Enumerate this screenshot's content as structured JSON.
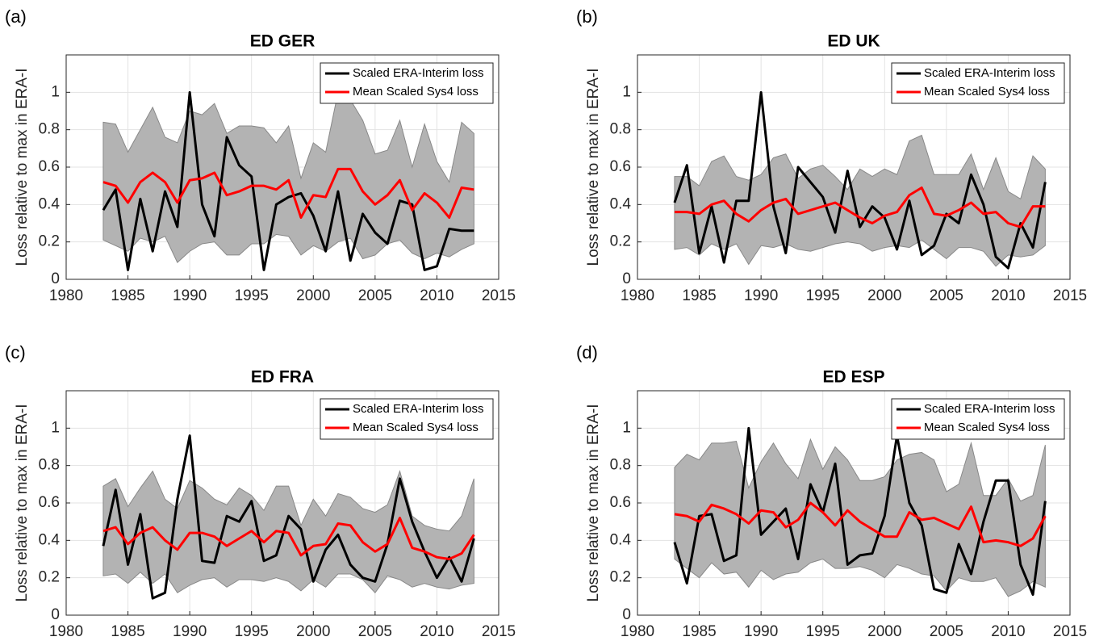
{
  "chart_data": [
    {
      "type": "line",
      "panel_label": "(a)",
      "title": "ED GER",
      "y_label": "Loss relative to max in ERA-I",
      "x": [
        1983,
        1984,
        1985,
        1986,
        1987,
        1988,
        1989,
        1990,
        1991,
        1992,
        1993,
        1994,
        1995,
        1996,
        1997,
        1998,
        1999,
        2000,
        2001,
        2002,
        2003,
        2004,
        2005,
        2006,
        2007,
        2008,
        2009,
        2010,
        2011,
        2012,
        2013
      ],
      "xlim": [
        1980,
        2015
      ],
      "xticks": [
        1980,
        1985,
        1990,
        1995,
        2000,
        2005,
        2010,
        2015
      ],
      "ylim": [
        0,
        1.2
      ],
      "yticks": [
        0,
        0.2,
        0.4,
        0.6,
        0.8,
        1
      ],
      "grid": true,
      "legend": "northeast",
      "band_color": "#b3b3b3",
      "band_upper": [
        0.84,
        0.83,
        0.68,
        0.8,
        0.92,
        0.76,
        0.73,
        0.9,
        0.88,
        0.94,
        0.78,
        0.82,
        0.82,
        0.81,
        0.73,
        0.82,
        0.54,
        0.73,
        0.68,
        1.0,
        0.96,
        0.85,
        0.67,
        0.69,
        0.85,
        0.6,
        0.83,
        0.63,
        0.52,
        0.84,
        0.78
      ],
      "band_lower": [
        0.21,
        0.18,
        0.15,
        0.22,
        0.2,
        0.23,
        0.09,
        0.15,
        0.19,
        0.2,
        0.13,
        0.13,
        0.19,
        0.19,
        0.24,
        0.23,
        0.13,
        0.18,
        0.15,
        0.2,
        0.22,
        0.11,
        0.13,
        0.19,
        0.21,
        0.14,
        0.11,
        0.14,
        0.12,
        0.16,
        0.19
      ],
      "series": [
        {
          "name": "Scaled ERA-Interim loss",
          "color": "#000000",
          "values": [
            0.37,
            0.48,
            0.05,
            0.43,
            0.15,
            0.47,
            0.28,
            1.0,
            0.4,
            0.23,
            0.76,
            0.61,
            0.55,
            0.05,
            0.4,
            0.44,
            0.46,
            0.34,
            0.15,
            0.47,
            0.1,
            0.35,
            0.25,
            0.19,
            0.42,
            0.4,
            0.05,
            0.07,
            0.27,
            0.26,
            0.26
          ]
        },
        {
          "name": "Mean Scaled Sys4 loss",
          "color": "#ff0000",
          "values": [
            0.52,
            0.5,
            0.41,
            0.52,
            0.57,
            0.52,
            0.41,
            0.53,
            0.54,
            0.57,
            0.45,
            0.47,
            0.5,
            0.5,
            0.48,
            0.53,
            0.33,
            0.45,
            0.44,
            0.59,
            0.59,
            0.47,
            0.4,
            0.45,
            0.53,
            0.37,
            0.46,
            0.41,
            0.33,
            0.49,
            0.48
          ]
        }
      ]
    },
    {
      "type": "line",
      "panel_label": "(b)",
      "title": "ED UK",
      "y_label": "Loss relative to max in ERA-I",
      "x": [
        1983,
        1984,
        1985,
        1986,
        1987,
        1988,
        1989,
        1990,
        1991,
        1992,
        1993,
        1994,
        1995,
        1996,
        1997,
        1998,
        1999,
        2000,
        2001,
        2002,
        2003,
        2004,
        2005,
        2006,
        2007,
        2008,
        2009,
        2010,
        2011,
        2012,
        2013
      ],
      "xlim": [
        1980,
        2015
      ],
      "xticks": [
        1980,
        1985,
        1990,
        1995,
        2000,
        2005,
        2010,
        2015
      ],
      "ylim": [
        0,
        1.2
      ],
      "yticks": [
        0,
        0.2,
        0.4,
        0.6,
        0.8,
        1
      ],
      "grid": true,
      "legend": "northeast",
      "band_color": "#b3b3b3",
      "band_upper": [
        0.55,
        0.55,
        0.5,
        0.63,
        0.66,
        0.55,
        0.53,
        0.56,
        0.65,
        0.67,
        0.54,
        0.59,
        0.61,
        0.55,
        0.48,
        0.59,
        0.55,
        0.59,
        0.56,
        0.74,
        0.77,
        0.56,
        0.56,
        0.56,
        0.67,
        0.48,
        0.65,
        0.47,
        0.43,
        0.66,
        0.59
      ],
      "band_lower": [
        0.16,
        0.17,
        0.13,
        0.19,
        0.16,
        0.19,
        0.08,
        0.18,
        0.17,
        0.19,
        0.16,
        0.15,
        0.17,
        0.19,
        0.2,
        0.19,
        0.15,
        0.17,
        0.18,
        0.17,
        0.21,
        0.16,
        0.11,
        0.17,
        0.17,
        0.15,
        0.07,
        0.13,
        0.12,
        0.13,
        0.18
      ],
      "series": [
        {
          "name": "Scaled ERA-Interim loss",
          "color": "#000000",
          "values": [
            0.41,
            0.61,
            0.14,
            0.39,
            0.09,
            0.42,
            0.42,
            1.0,
            0.39,
            0.14,
            0.6,
            0.52,
            0.44,
            0.25,
            0.58,
            0.28,
            0.39,
            0.33,
            0.16,
            0.42,
            0.13,
            0.18,
            0.35,
            0.3,
            0.56,
            0.4,
            0.12,
            0.06,
            0.3,
            0.17,
            0.52
          ]
        },
        {
          "name": "Mean Scaled Sys4 loss",
          "color": "#ff0000",
          "values": [
            0.36,
            0.36,
            0.35,
            0.4,
            0.42,
            0.35,
            0.31,
            0.37,
            0.41,
            0.43,
            0.35,
            0.37,
            0.39,
            0.41,
            0.37,
            0.33,
            0.3,
            0.34,
            0.36,
            0.45,
            0.49,
            0.35,
            0.34,
            0.37,
            0.41,
            0.35,
            0.36,
            0.3,
            0.28,
            0.39,
            0.39
          ]
        }
      ]
    },
    {
      "type": "line",
      "panel_label": "(c)",
      "title": "ED FRA",
      "y_label": "Loss relative to max in ERA-I",
      "x": [
        1983,
        1984,
        1985,
        1986,
        1987,
        1988,
        1989,
        1990,
        1991,
        1992,
        1993,
        1994,
        1995,
        1996,
        1997,
        1998,
        1999,
        2000,
        2001,
        2002,
        2003,
        2004,
        2005,
        2006,
        2007,
        2008,
        2009,
        2010,
        2011,
        2012,
        2013
      ],
      "xlim": [
        1980,
        2015
      ],
      "xticks": [
        1980,
        1985,
        1990,
        1995,
        2000,
        2005,
        2010,
        2015
      ],
      "ylim": [
        0,
        1.2
      ],
      "yticks": [
        0,
        0.2,
        0.4,
        0.6,
        0.8,
        1
      ],
      "grid": true,
      "legend": "northeast",
      "band_color": "#b3b3b3",
      "band_upper": [
        0.69,
        0.73,
        0.58,
        0.68,
        0.77,
        0.62,
        0.57,
        0.72,
        0.68,
        0.62,
        0.59,
        0.68,
        0.64,
        0.56,
        0.69,
        0.69,
        0.48,
        0.62,
        0.53,
        0.65,
        0.63,
        0.57,
        0.55,
        0.59,
        0.77,
        0.53,
        0.48,
        0.46,
        0.45,
        0.53,
        0.73
      ],
      "band_lower": [
        0.21,
        0.22,
        0.17,
        0.23,
        0.17,
        0.22,
        0.12,
        0.16,
        0.19,
        0.2,
        0.15,
        0.19,
        0.19,
        0.18,
        0.2,
        0.18,
        0.13,
        0.19,
        0.15,
        0.22,
        0.22,
        0.19,
        0.12,
        0.21,
        0.19,
        0.15,
        0.17,
        0.15,
        0.14,
        0.16,
        0.17
      ],
      "series": [
        {
          "name": "Scaled ERA-Interim loss",
          "color": "#000000",
          "values": [
            0.37,
            0.67,
            0.27,
            0.54,
            0.09,
            0.12,
            0.62,
            0.96,
            0.29,
            0.28,
            0.53,
            0.5,
            0.61,
            0.29,
            0.32,
            0.53,
            0.46,
            0.18,
            0.35,
            0.43,
            0.27,
            0.2,
            0.18,
            0.38,
            0.73,
            0.5,
            0.34,
            0.2,
            0.31,
            0.18,
            0.41
          ]
        },
        {
          "name": "Mean Scaled Sys4 loss",
          "color": "#ff0000",
          "values": [
            0.45,
            0.47,
            0.38,
            0.44,
            0.47,
            0.4,
            0.35,
            0.44,
            0.44,
            0.42,
            0.37,
            0.41,
            0.45,
            0.39,
            0.45,
            0.44,
            0.32,
            0.37,
            0.38,
            0.49,
            0.48,
            0.39,
            0.34,
            0.38,
            0.52,
            0.36,
            0.34,
            0.31,
            0.3,
            0.33,
            0.43
          ]
        }
      ]
    },
    {
      "type": "line",
      "panel_label": "(d)",
      "title": "ED ESP",
      "y_label": "Loss relative to max in ERA-I",
      "x": [
        1983,
        1984,
        1985,
        1986,
        1987,
        1988,
        1989,
        1990,
        1991,
        1992,
        1993,
        1994,
        1995,
        1996,
        1997,
        1998,
        1999,
        2000,
        2001,
        2002,
        2003,
        2004,
        2005,
        2006,
        2007,
        2008,
        2009,
        2010,
        2011,
        2012,
        2013
      ],
      "xlim": [
        1980,
        2015
      ],
      "xticks": [
        1980,
        1985,
        1990,
        1995,
        2000,
        2005,
        2010,
        2015
      ],
      "ylim": [
        0,
        1.2
      ],
      "yticks": [
        0,
        0.2,
        0.4,
        0.6,
        0.8,
        1
      ],
      "grid": true,
      "legend": "northeast",
      "band_color": "#b3b3b3",
      "band_upper": [
        0.79,
        0.86,
        0.83,
        0.92,
        0.92,
        0.93,
        0.68,
        0.82,
        0.92,
        0.81,
        0.73,
        0.94,
        0.78,
        0.9,
        0.83,
        0.72,
        0.72,
        0.74,
        0.83,
        0.86,
        0.87,
        0.83,
        0.66,
        0.7,
        0.92,
        0.64,
        0.64,
        0.73,
        0.61,
        0.64,
        0.91
      ],
      "band_lower": [
        0.3,
        0.25,
        0.2,
        0.28,
        0.22,
        0.23,
        0.15,
        0.24,
        0.19,
        0.22,
        0.23,
        0.28,
        0.3,
        0.25,
        0.25,
        0.26,
        0.24,
        0.2,
        0.27,
        0.25,
        0.22,
        0.21,
        0.13,
        0.2,
        0.18,
        0.18,
        0.2,
        0.1,
        0.13,
        0.18,
        0.15
      ],
      "series": [
        {
          "name": "Scaled ERA-Interim loss",
          "color": "#000000",
          "values": [
            0.39,
            0.17,
            0.53,
            0.54,
            0.29,
            0.32,
            1.0,
            0.43,
            0.5,
            0.57,
            0.3,
            0.7,
            0.55,
            0.81,
            0.27,
            0.32,
            0.33,
            0.53,
            0.96,
            0.6,
            0.48,
            0.14,
            0.12,
            0.38,
            0.22,
            0.5,
            0.72,
            0.72,
            0.27,
            0.11,
            0.61
          ]
        },
        {
          "name": "Mean Scaled Sys4 loss",
          "color": "#ff0000",
          "values": [
            0.54,
            0.53,
            0.5,
            0.59,
            0.57,
            0.54,
            0.49,
            0.56,
            0.55,
            0.47,
            0.51,
            0.6,
            0.55,
            0.48,
            0.56,
            0.5,
            0.46,
            0.42,
            0.42,
            0.55,
            0.51,
            0.52,
            0.49,
            0.46,
            0.58,
            0.39,
            0.4,
            0.39,
            0.37,
            0.41,
            0.53
          ]
        }
      ]
    }
  ]
}
